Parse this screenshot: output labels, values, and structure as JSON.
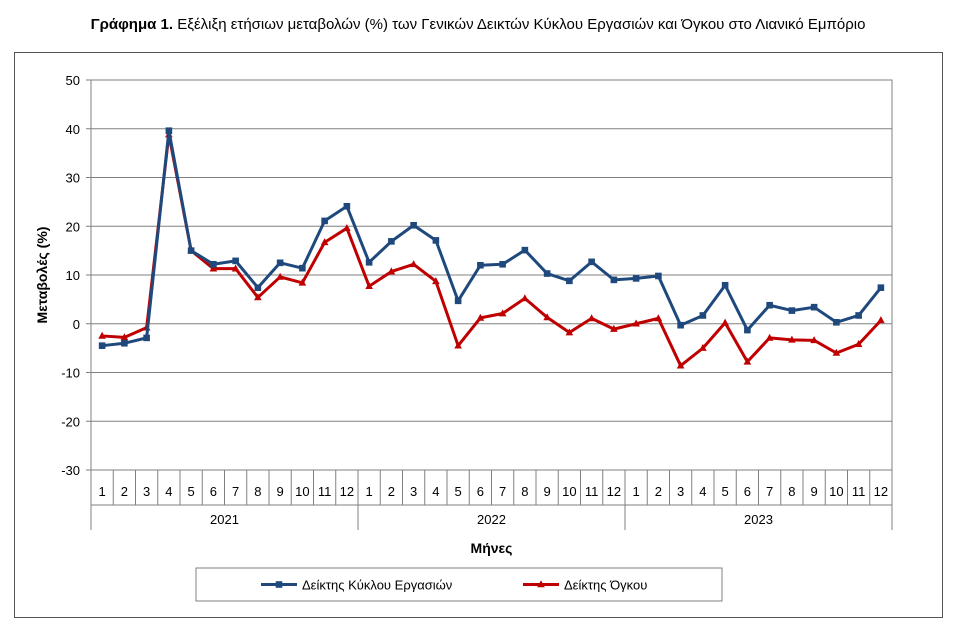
{
  "figure": {
    "title_bold": "Γράφημα 1.",
    "title_text": "Εξέλιξη ετήσιων μεταβολών (%) των Γενικών Δεικτών Κύκλου Εργασιών και Όγκου στο Λιανικό Εμπόριο"
  },
  "chart_data": {
    "type": "line",
    "xlabel": "Μήνες",
    "ylabel": "Μεταβολές  (%)",
    "ylim": [
      -30,
      50
    ],
    "yticks": [
      -30,
      -20,
      -10,
      0,
      10,
      20,
      30,
      40,
      50
    ],
    "grid": true,
    "legend_position": "bottom",
    "years": [
      "2021",
      "2022",
      "2023"
    ],
    "months": [
      "1",
      "2",
      "3",
      "4",
      "5",
      "6",
      "7",
      "8",
      "9",
      "10",
      "11",
      "12"
    ],
    "series": [
      {
        "name": "Δείκτης Κύκλου Εργασιών",
        "color": "#1F497D",
        "marker": "square",
        "values": [
          -4.5,
          -4.0,
          -2.9,
          39.6,
          15.0,
          12.2,
          12.9,
          7.4,
          12.5,
          11.4,
          21.1,
          24.1,
          12.6,
          16.9,
          20.2,
          17.1,
          4.7,
          12.0,
          12.2,
          15.1,
          10.3,
          8.8,
          12.7,
          9.0,
          9.3,
          9.8,
          -0.3,
          1.7,
          7.9,
          -1.3,
          3.8,
          2.7,
          3.4,
          0.3,
          1.7,
          7.4
        ]
      },
      {
        "name": "Δείκτης Όγκου",
        "color": "#C00000",
        "marker": "triangle",
        "values": [
          -2.5,
          -2.8,
          -0.8,
          38.8,
          15.0,
          11.3,
          11.3,
          5.4,
          9.6,
          8.4,
          16.7,
          19.6,
          7.7,
          10.7,
          12.2,
          8.7,
          -4.5,
          1.2,
          2.1,
          5.2,
          1.3,
          -1.8,
          1.1,
          -1.1,
          0.0,
          1.1,
          -8.6,
          -5.0,
          0.2,
          -7.8,
          -2.9,
          -3.3,
          -3.4,
          -6.0,
          -4.2,
          0.7
        ]
      }
    ]
  }
}
